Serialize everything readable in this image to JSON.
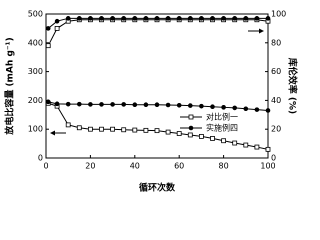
{
  "chart_data": {
    "type": "line",
    "x_label": "循环次数",
    "y_label": "放电比容量 (mAh g⁻¹)",
    "y2_label": "库伦效率 (%)",
    "x": [
      1,
      5,
      10,
      15,
      20,
      25,
      30,
      35,
      40,
      45,
      50,
      55,
      60,
      65,
      70,
      75,
      80,
      85,
      90,
      95,
      100
    ],
    "series": [
      {
        "name": "对比例一",
        "color": "#000000",
        "marker": "square",
        "values": [
          190,
          180,
          115,
          105,
          100,
          100,
          100,
          98,
          97,
          96,
          95,
          90,
          85,
          80,
          75,
          68,
          60,
          52,
          45,
          38,
          30
        ]
      },
      {
        "name": "实施例四",
        "color": "#000000",
        "marker": "circle",
        "values": [
          195,
          188,
          187,
          187,
          186,
          186,
          186,
          186,
          185,
          185,
          185,
          184,
          183,
          182,
          180,
          178,
          176,
          174,
          171,
          168,
          165
        ]
      },
      {
        "color": "#000000",
        "marker": "square",
        "axis": "y2",
        "values": [
          78,
          90,
          95,
          96,
          96,
          96,
          96,
          96,
          96,
          96,
          96,
          96,
          96,
          96,
          96,
          96,
          96,
          96,
          96,
          96,
          95
        ]
      },
      {
        "color": "#000000",
        "marker": "circle",
        "axis": "y2",
        "values": [
          90,
          95,
          97,
          97,
          97,
          97,
          97,
          97,
          97,
          97,
          97,
          97,
          97,
          97,
          97,
          97,
          97,
          97,
          97,
          97,
          97
        ]
      }
    ],
    "xlim": [
      0,
      100
    ],
    "xticks": [
      0,
      20,
      40,
      60,
      80,
      100
    ],
    "ylim": [
      0,
      500
    ],
    "yticks": [
      0,
      100,
      200,
      300,
      400,
      500
    ],
    "y2lim": [
      0,
      100
    ],
    "y2ticks": [
      0,
      20,
      40,
      60,
      80,
      100
    ],
    "legend": "lower right"
  }
}
